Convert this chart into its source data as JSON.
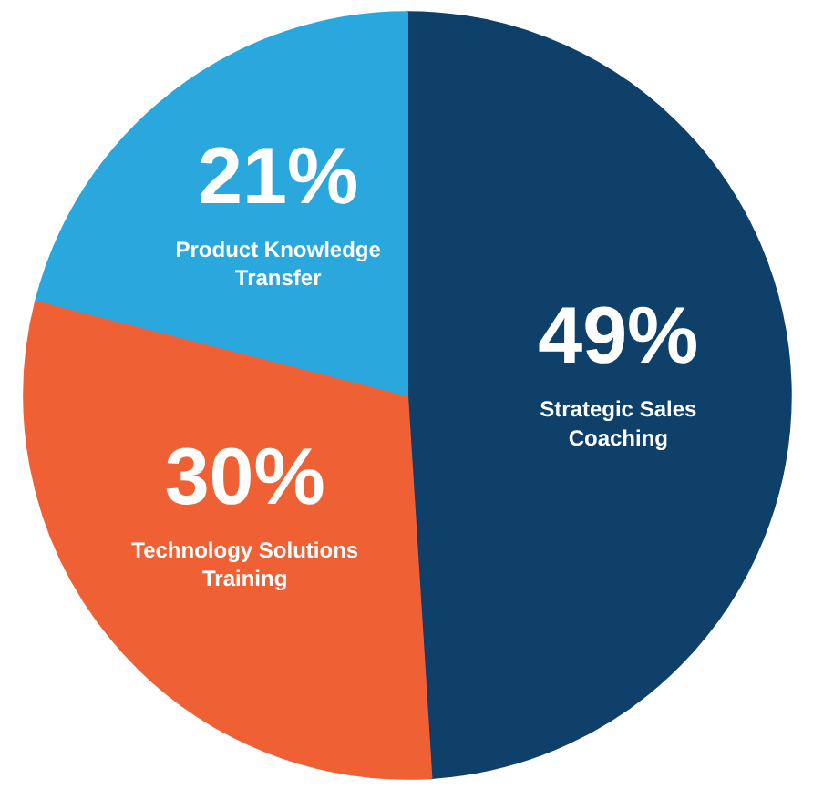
{
  "chart_data": {
    "type": "pie",
    "categories": [
      "Strategic Sales Coaching",
      "Technology Solutions Training",
      "Product Knowledge Transfer"
    ],
    "values": [
      49,
      30,
      21
    ],
    "value_labels": [
      "49%",
      "30%",
      "21%"
    ],
    "colors": [
      "#0f4069",
      "#ef6035",
      "#2aa8de"
    ]
  }
}
